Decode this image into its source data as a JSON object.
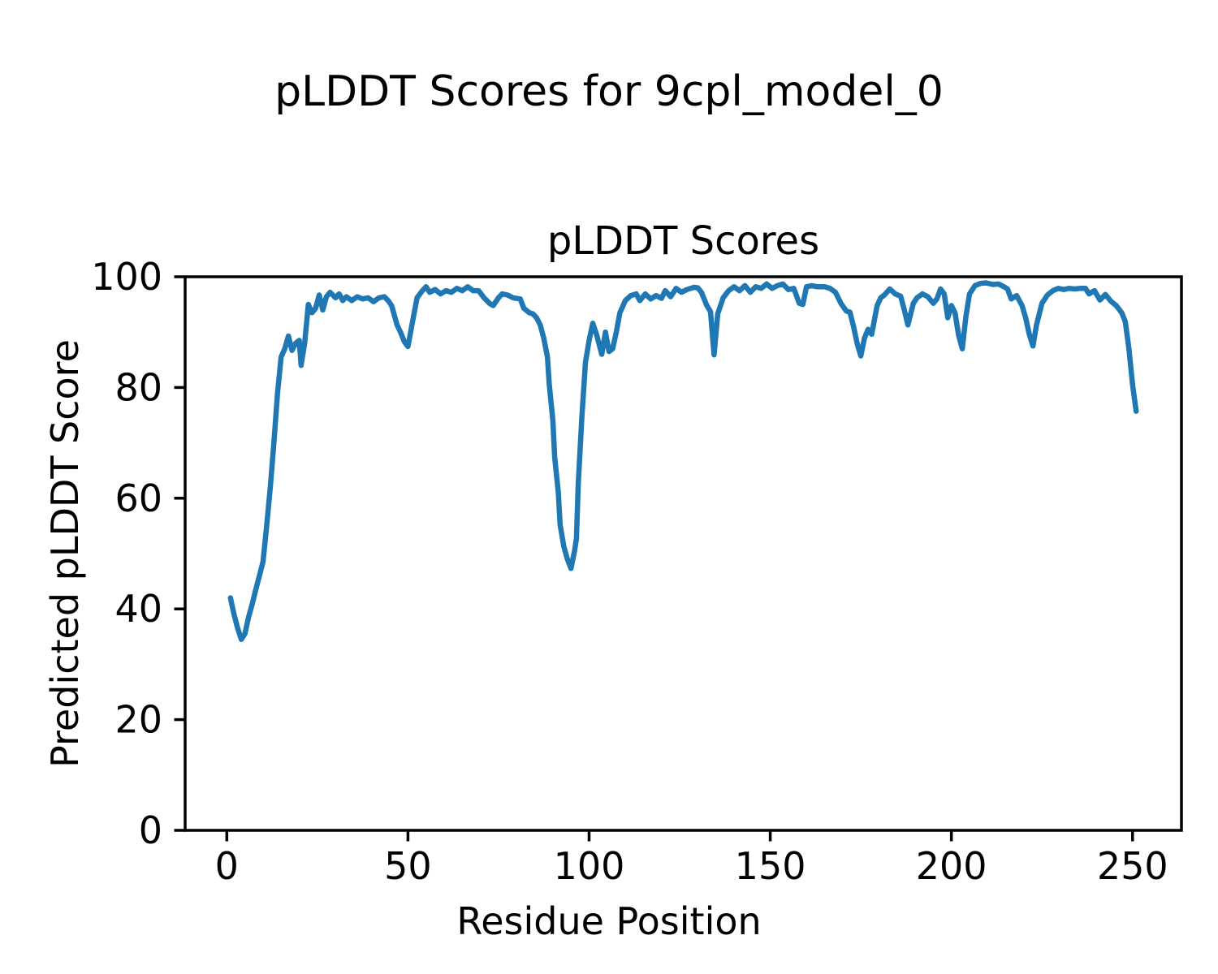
{
  "figure": {
    "suptitle": "pLDDT Scores for 9cpl_model_0",
    "background_color": "#ffffff",
    "text_color": "#000000"
  },
  "chart_data": {
    "type": "line",
    "title": "pLDDT Scores",
    "xlabel": "Residue Position",
    "ylabel": "Predicted pLDDT Score",
    "xlim": [
      -11.5,
      263.5
    ],
    "ylim": [
      0,
      100
    ],
    "xticks": [
      0,
      50,
      100,
      150,
      200,
      250
    ],
    "yticks": [
      0,
      20,
      40,
      60,
      80,
      100
    ],
    "grid": false,
    "legend": "none",
    "series": [
      {
        "color": "#1f77b4",
        "x": [
          1,
          2,
          3,
          4,
          5,
          6,
          7,
          8,
          9,
          10,
          11,
          12,
          13,
          14,
          15,
          16,
          17,
          18,
          19,
          20,
          20.5,
          21.5,
          22.5,
          23.5,
          24.5,
          25.5,
          26.5,
          27.5,
          28.5,
          30,
          31,
          32,
          33,
          34.5,
          36,
          37.5,
          39,
          40.5,
          42,
          43.5,
          44.5,
          45.5,
          47,
          48,
          49,
          50,
          51,
          52.5,
          54,
          55,
          56,
          57.5,
          59,
          60.5,
          62,
          63.5,
          65,
          66.5,
          68,
          69.5,
          71,
          72.5,
          73.5,
          75,
          76,
          77.5,
          79,
          81,
          82,
          83.5,
          84.5,
          85.5,
          86.5,
          87.5,
          88.5,
          89,
          90,
          90.5,
          91.5,
          92,
          93,
          94,
          95,
          96,
          96.5,
          97,
          98,
          99,
          100,
          101,
          102,
          103.5,
          104.5,
          105.5,
          106.5,
          107.5,
          108.5,
          110,
          111.5,
          113,
          114,
          115.5,
          117,
          118.5,
          120,
          121,
          122.5,
          124,
          125.5,
          127,
          129,
          130,
          131,
          132.5,
          133.5,
          134.5,
          135.5,
          137,
          138.5,
          140,
          141.5,
          143,
          144.5,
          146,
          147.5,
          149,
          150.5,
          152,
          153.5,
          155,
          156.5,
          158,
          159,
          160,
          161.5,
          163,
          165,
          166.5,
          168,
          169.5,
          171,
          172,
          173,
          174,
          175,
          176,
          177,
          178,
          179.5,
          180.5,
          181.5,
          183,
          184.5,
          186,
          187,
          188,
          189.5,
          190.5,
          192,
          193.5,
          195,
          196,
          197,
          198,
          199,
          200,
          201,
          202,
          203,
          204,
          205,
          206.5,
          208,
          209.5,
          211.5,
          213,
          214.5,
          215.5,
          216.5,
          218,
          219.5,
          220.5,
          221.5,
          222.5,
          223.5,
          225,
          226.5,
          228,
          229.5,
          231,
          232.5,
          234,
          235.5,
          237,
          238,
          239.5,
          241,
          242.5,
          244,
          245.5,
          247,
          248,
          249,
          250,
          251
        ],
        "y": [
          42,
          39,
          36.5,
          34.5,
          35.5,
          38.5,
          40.8,
          43.5,
          46,
          48.5,
          55,
          62,
          70,
          79,
          85.5,
          87,
          89.3,
          86.7,
          88,
          88.5,
          84,
          88,
          95,
          93.5,
          94.3,
          96.7,
          94,
          96.4,
          97.2,
          96.2,
          96.9,
          95.7,
          96.4,
          95.7,
          96.4,
          96,
          96.2,
          95.5,
          96.2,
          96.4,
          95.7,
          94.8,
          91.3,
          89.9,
          88.3,
          87.4,
          91,
          96.2,
          97.5,
          98.2,
          97.2,
          97.7,
          96.9,
          97.5,
          97.2,
          97.9,
          97.5,
          98.2,
          97.5,
          97.5,
          96.2,
          95.2,
          94.8,
          96.2,
          96.9,
          96.7,
          96.2,
          96,
          94.3,
          93.5,
          93.3,
          92.6,
          91.3,
          88.9,
          85.5,
          80.6,
          74,
          67.4,
          61,
          55.2,
          51.3,
          49,
          47.3,
          50.5,
          52.7,
          62.5,
          74.7,
          84.5,
          88.5,
          91.6,
          89.7,
          86,
          90,
          86.5,
          87,
          90,
          93.5,
          95.7,
          96.6,
          96.9,
          95.7,
          96.9,
          96,
          96.6,
          96.1,
          97.5,
          96.4,
          97.9,
          97.2,
          97.7,
          98.1,
          98,
          97.2,
          94.8,
          93.7,
          85.9,
          93.3,
          96.2,
          97.5,
          98.2,
          97.5,
          98.4,
          97.2,
          98.2,
          97.9,
          98.7,
          97.9,
          98.4,
          98.7,
          97.7,
          97.9,
          95.2,
          95,
          98.2,
          98.4,
          98.2,
          98.2,
          97.9,
          97.2,
          95.2,
          93.8,
          93.6,
          91,
          87.9,
          85.7,
          88.9,
          90.5,
          89.6,
          94.8,
          96.2,
          96.7,
          97.8,
          96.9,
          96.5,
          94,
          91.3,
          95.2,
          96.2,
          96.9,
          96.4,
          95.2,
          96,
          97.8,
          96.9,
          92.6,
          94.8,
          93.5,
          89.4,
          87,
          92.8,
          96.9,
          98.4,
          98.8,
          98.9,
          98.6,
          98.7,
          98.2,
          97.8,
          96,
          96.6,
          94.8,
          92.6,
          89.6,
          87.5,
          91.3,
          95.2,
          96.7,
          97.5,
          97.9,
          97.7,
          97.9,
          97.8,
          97.9,
          97.9,
          96.9,
          97.5,
          95.8,
          96.8,
          95.6,
          94.8,
          93.5,
          91.9,
          87,
          80.5,
          75.7
        ]
      }
    ]
  }
}
